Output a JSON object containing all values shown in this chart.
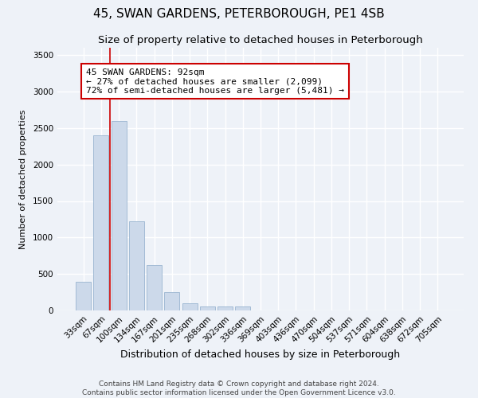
{
  "title": "45, SWAN GARDENS, PETERBOROUGH, PE1 4SB",
  "subtitle": "Size of property relative to detached houses in Peterborough",
  "xlabel": "Distribution of detached houses by size in Peterborough",
  "ylabel": "Number of detached properties",
  "categories": [
    "33sqm",
    "67sqm",
    "100sqm",
    "134sqm",
    "167sqm",
    "201sqm",
    "235sqm",
    "268sqm",
    "302sqm",
    "336sqm",
    "369sqm",
    "403sqm",
    "436sqm",
    "470sqm",
    "504sqm",
    "537sqm",
    "571sqm",
    "604sqm",
    "638sqm",
    "672sqm",
    "705sqm"
  ],
  "values": [
    390,
    2400,
    2600,
    1220,
    620,
    250,
    100,
    60,
    55,
    50,
    0,
    0,
    0,
    0,
    0,
    0,
    0,
    0,
    0,
    0,
    0
  ],
  "bar_color": "#ccd9ea",
  "bar_edge_color": "#9ab5d0",
  "vline_x_index": 1.5,
  "vline_color": "#cc0000",
  "annotation_text": "45 SWAN GARDENS: 92sqm\n← 27% of detached houses are smaller (2,099)\n72% of semi-detached houses are larger (5,481) →",
  "annotation_box_color": "white",
  "annotation_box_edge_color": "#cc0000",
  "ylim": [
    0,
    3600
  ],
  "yticks": [
    0,
    500,
    1000,
    1500,
    2000,
    2500,
    3000,
    3500
  ],
  "footer1": "Contains HM Land Registry data © Crown copyright and database right 2024.",
  "footer2": "Contains public sector information licensed under the Open Government Licence v3.0.",
  "bg_color": "#eef2f8",
  "plot_bg_color": "#eef2f8",
  "grid_color": "white",
  "title_fontsize": 11,
  "subtitle_fontsize": 9.5,
  "xlabel_fontsize": 9,
  "ylabel_fontsize": 8,
  "tick_fontsize": 7.5,
  "footer_fontsize": 6.5,
  "annotation_fontsize": 8
}
